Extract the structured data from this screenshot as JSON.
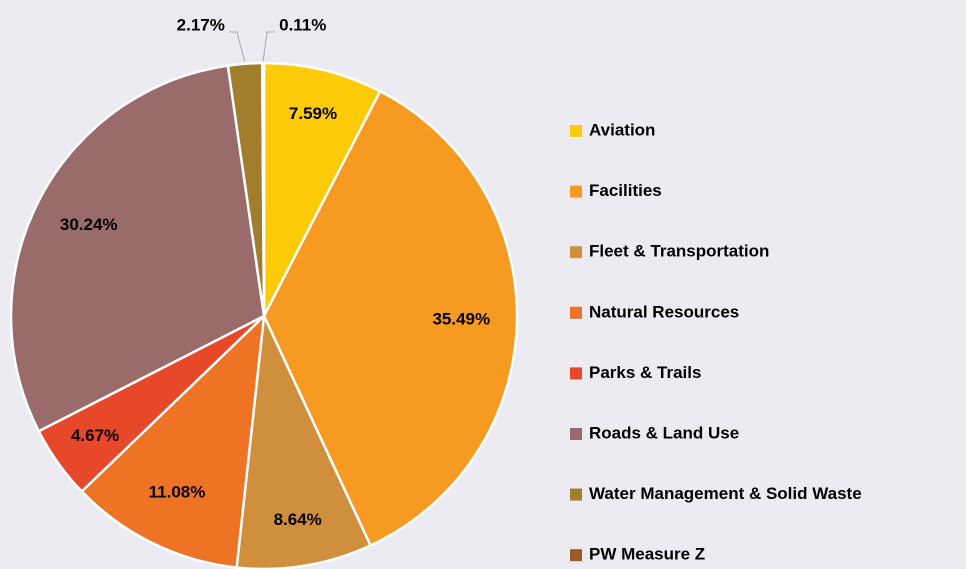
{
  "chart_data": {
    "type": "pie",
    "categories": [
      "Aviation",
      "Facilities",
      "Fleet & Transportation",
      "Natural Resources",
      "Parks & Trails",
      "Roads & Land Use",
      "Water Management & Solid Waste",
      "PW Measure Z"
    ],
    "values": [
      7.59,
      35.49,
      8.64,
      11.08,
      4.67,
      30.24,
      2.17,
      0.11
    ],
    "value_labels": [
      "7.59%",
      "35.49%",
      "8.64%",
      "11.08%",
      "4.67%",
      "30.24%",
      "2.17%",
      "0.11%"
    ],
    "colors": [
      "#fecb0a",
      "#f79a22",
      "#d08f3c",
      "#ee7325",
      "#e8482a",
      "#9a6b6b",
      "#a07e2d",
      "#9b5a22"
    ],
    "legend": "right"
  }
}
